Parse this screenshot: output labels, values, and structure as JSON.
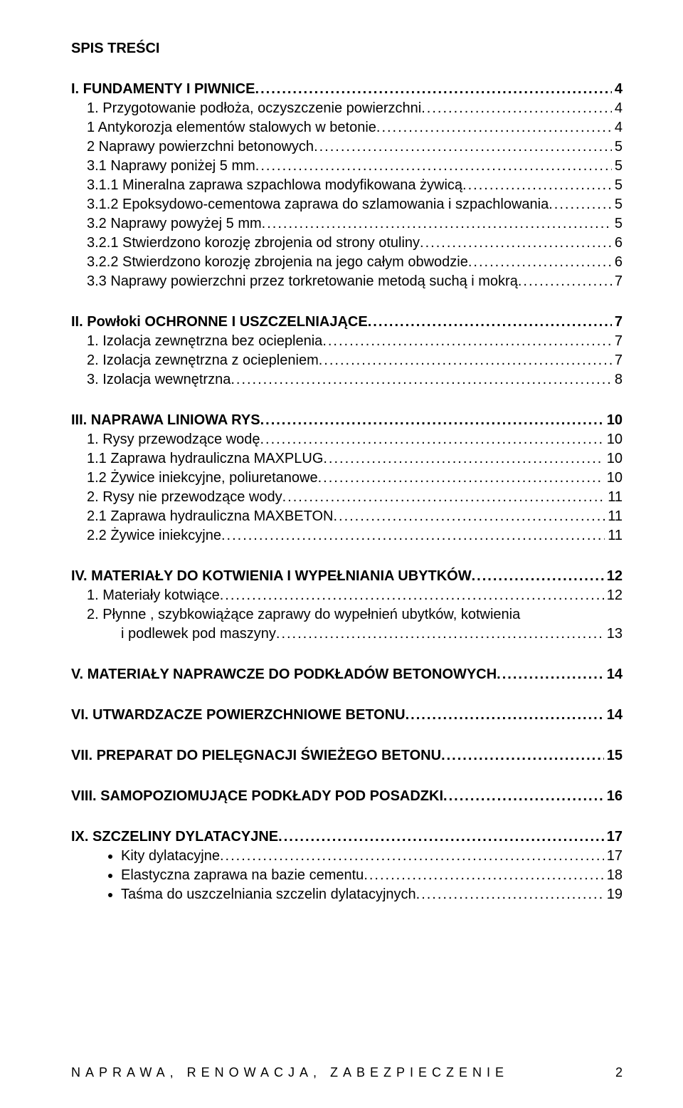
{
  "title": "SPIS TREŚCI",
  "footer": {
    "text": "NAPRAWA, RENOWACJA, ZABEZPIECZENIE",
    "page": "2"
  },
  "sec1": {
    "head": "I. FUNDAMENTY I PIWNICE",
    "head_pg": "4",
    "i1": {
      "t": "1. Przygotowanie podłoża, oczyszczenie powierzchni",
      "p": "4"
    },
    "i2": {
      "t": "1 Antykorozja elementów stalowych w betonie",
      "p": "4"
    },
    "i3": {
      "t": "2 Naprawy powierzchni betonowych",
      "p": "5"
    },
    "i4": {
      "t": "3.1 Naprawy poniżej 5 mm",
      "p": "5"
    },
    "i5": {
      "t": "3.1.1 Mineralna zaprawa szpachlowa modyfikowana żywicą",
      "p": "5"
    },
    "i6": {
      "t": "3.1.2 Epoksydowo-cementowa zaprawa do szlamowania i szpachlowania",
      "p": " 5"
    },
    "i7": {
      "t": "3.2 Naprawy powyżej 5 mm",
      "p": "5"
    },
    "i8": {
      "t": "3.2.1 Stwierdzono korozję zbrojenia od strony otuliny",
      "p": "6"
    },
    "i9": {
      "t": "3.2.2 Stwierdzono korozję zbrojenia na jego całym obwodzie",
      "p": "6"
    },
    "i10": {
      "t": "3.3 Naprawy powierzchni przez torkretowanie metodą suchą i mokrą",
      "p": "7"
    }
  },
  "sec2": {
    "head": "II. Powłoki OCHRONNE I USZCZELNIAJĄCE",
    "head_pg": " 7",
    "i1": {
      "t": "1. Izolacja zewnętrzna bez ocieplenia",
      "p": "7"
    },
    "i2": {
      "t": "2. Izolacja zewnętrzna z ociepleniem",
      "p": "7"
    },
    "i3": {
      "t": "3. Izolacja wewnętrzna",
      "p": "8"
    }
  },
  "sec3": {
    "head": "III. NAPRAWA LINIOWA RYS",
    "head_pg": " 10",
    "i1": {
      "t": "1. Rysy przewodzące wodę",
      "p": "10"
    },
    "i2": {
      "t": "1.1 Zaprawa hydrauliczna MAXPLUG",
      "p": "10"
    },
    "i3": {
      "t": "1.2 Żywice iniekcyjne, poliuretanowe",
      "p": "10"
    },
    "i4": {
      "t": "2. Rysy nie przewodzące wody",
      "p": "11"
    },
    "i5": {
      "t": "2.1 Zaprawa hydrauliczna MAXBETON",
      "p": "11"
    },
    "i6": {
      "t": "2.2 Żywice iniekcyjne",
      "p": " 11"
    }
  },
  "sec4": {
    "head": "IV. MATERIAŁY DO KOTWIENIA I WYPEŁNIANIA UBYTKÓW",
    "head_pg": " 12",
    "i1": {
      "t": "1.    Materiały kotwiące",
      "p": "12"
    },
    "i2a": "2.    Płynne , szybkowiążące zaprawy do wypełnień ubytków, kotwienia",
    "i2b": {
      "t": "i podlewek pod maszyny",
      "p": "13"
    }
  },
  "sec5": {
    "head": "V. MATERIAŁY NAPRAWCZE DO PODKŁADÓW BETONOWYCH",
    "head_pg": " 14"
  },
  "sec6": {
    "head": "VI. UTWARDZACZE POWIERZCHNIOWE BETONU",
    "head_pg": " 14"
  },
  "sec7": {
    "head": "VII. PREPARAT DO PIELĘGNACJI ŚWIEŻEGO BETONU",
    "head_pg": "15"
  },
  "sec8": {
    "head": "VIII. SAMOPOZIOMUJĄCE PODKŁADY POD POSADZKI",
    "head_pg": " 16"
  },
  "sec9": {
    "head": "IX. SZCZELINY DYLATACYJNE",
    "head_pg": " 17",
    "b1": {
      "t": "Kity dylatacyjne",
      "p": " 17"
    },
    "b2": {
      "t": "Elastyczna zaprawa na bazie cementu",
      "p": " 18"
    },
    "b3": {
      "t": "Taśma do uszczelniania szczelin dylatacyjnych",
      "p": " 19"
    }
  }
}
